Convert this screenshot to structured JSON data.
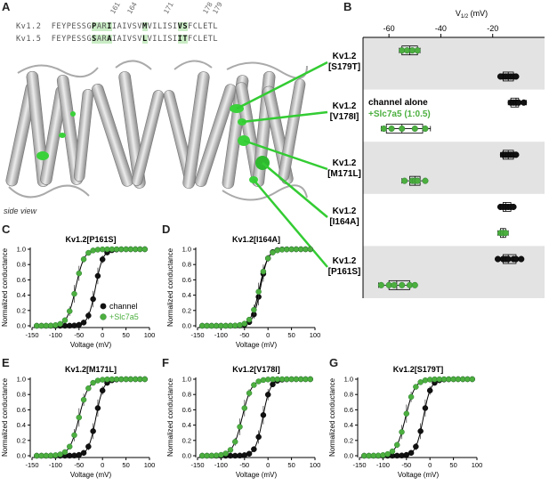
{
  "panels": {
    "A": "A",
    "B": "B",
    "C": "C",
    "D": "D",
    "E": "E",
    "F": "F",
    "G": "G"
  },
  "sequence": {
    "kv12_label": "Kv1.2",
    "kv15_label": "Kv1.5",
    "kv12_parts": [
      "FEYPESSG",
      "P",
      "A",
      "R",
      "I",
      "IAIVSV",
      "M",
      "VILISI",
      "V",
      "S",
      "FCLETL"
    ],
    "kv15_parts": [
      "FEYPESSG",
      "S",
      "A",
      "R",
      "A",
      "IAIVSV",
      "L",
      "VILISI",
      "I",
      "T",
      "FCLETL"
    ],
    "positions": [
      "161",
      "164",
      "171",
      "178",
      "179"
    ]
  },
  "structure": {
    "side_view_label": "side view",
    "mutant_labels": [
      {
        "name": "Kv1.2",
        "mut": "[S179T]"
      },
      {
        "name": "Kv1.2",
        "mut": "[V178I]"
      },
      {
        "name": "Kv1.2",
        "mut": "[M171L]"
      },
      {
        "name": "Kv1.2",
        "mut": "[I164A]"
      },
      {
        "name": "Kv1.2",
        "mut": "[P161S]"
      }
    ],
    "legend_channel": "channel alone",
    "legend_slc": "+Slc7a5 (1:0.5)"
  },
  "colors": {
    "channel": "#111111",
    "slc": "#4caf3f",
    "slc_edge": "#2e7d32",
    "band": "#e3e3e3",
    "link": "#33cc33",
    "highlight": "#c9ecc5"
  },
  "chart_data": [
    {
      "id": "B",
      "type": "box",
      "title": "V1/2 (mV)",
      "title_main": "V",
      "title_sub": "1/2",
      "title_unit": " (mV)",
      "x_ticks": [
        -60,
        -40,
        -20
      ],
      "xlim": [
        -70,
        0
      ],
      "rows": [
        {
          "label": "S179T",
          "band": true,
          "group": "slc",
          "median": -52,
          "q1": -55,
          "q3": -49,
          "min": -56,
          "max": -48,
          "points": [
            -55,
            -53,
            -51,
            -49
          ]
        },
        {
          "label": "S179T",
          "band": true,
          "group": "channel",
          "median": -14,
          "q1": -16,
          "q3": -12,
          "min": -17,
          "max": -11,
          "points": [
            -16,
            -15,
            -14,
            -13,
            -12,
            -11,
            -17
          ]
        },
        {
          "label": "V178I",
          "band": false,
          "group": "channel",
          "median": -11,
          "q1": -13,
          "q3": -10,
          "min": -14,
          "max": -7,
          "points": [
            -13,
            -12,
            -11,
            -10,
            -8
          ]
        },
        {
          "label": "V178I",
          "band": false,
          "group": "slc",
          "median": -55,
          "q1": -61,
          "q3": -47,
          "min": -63,
          "max": -44,
          "points": [
            -62,
            -59,
            -55,
            -50,
            -46
          ]
        },
        {
          "label": "M171L",
          "band": true,
          "group": "channel",
          "median": -14,
          "q1": -16,
          "q3": -12,
          "min": -17,
          "max": -11,
          "points": [
            -16,
            -15,
            -14,
            -13,
            -12,
            -11
          ]
        },
        {
          "label": "M171L",
          "band": true,
          "group": "slc",
          "median": -50,
          "q1": -52,
          "q3": -48,
          "min": -55,
          "max": -46,
          "points": [
            -54,
            -51,
            -50,
            -49,
            -46
          ]
        },
        {
          "label": "I164A",
          "band": false,
          "group": "channel",
          "median": -15,
          "q1": -16,
          "q3": -13,
          "min": -17,
          "max": -12,
          "points": [
            -17,
            -16,
            -15,
            -14,
            -13,
            -12
          ]
        },
        {
          "label": "I164A",
          "band": false,
          "group": "slc",
          "median": -16,
          "q1": -17,
          "q3": -15,
          "min": -18,
          "max": -14,
          "points": [
            -17,
            -16,
            -15
          ]
        },
        {
          "label": "P161S",
          "band": true,
          "group": "channel",
          "median": -14,
          "q1": -16,
          "q3": -11,
          "min": -18,
          "max": -9,
          "points": [
            -18,
            -16,
            -15,
            -14,
            -12,
            -11,
            -9
          ]
        },
        {
          "label": "P161S",
          "band": true,
          "group": "slc",
          "median": -57,
          "q1": -60,
          "q3": -52,
          "min": -64,
          "max": -50,
          "points": [
            -63,
            -60,
            -58,
            -55,
            -52,
            -50
          ]
        }
      ]
    },
    {
      "id": "C",
      "type": "line",
      "title": "Kv1.2[P161S]",
      "xlabel": "Voltage (mV)",
      "ylabel": "Normalized conductance",
      "xlim": [
        -150,
        100
      ],
      "ylim": [
        0,
        1.0
      ],
      "x_ticks": [
        -150,
        -100,
        -50,
        0,
        50,
        100
      ],
      "y_ticks": [
        0.0,
        0.2,
        0.4,
        0.6,
        0.8,
        1.0
      ],
      "legend": [
        "channel",
        "+Slc7a5"
      ],
      "series": [
        {
          "name": "channel",
          "v_half": -15,
          "slope": 8
        },
        {
          "name": "+Slc7a5",
          "v_half": -57,
          "slope": 9
        }
      ]
    },
    {
      "id": "D",
      "type": "line",
      "title": "Kv1.2[I164A]",
      "xlabel": "Voltage (mV)",
      "ylabel": "Normalized conductance",
      "xlim": [
        -150,
        100
      ],
      "ylim": [
        0,
        1.0
      ],
      "x_ticks": [
        -150,
        -100,
        -50,
        0,
        50,
        100
      ],
      "y_ticks": [
        0.0,
        0.2,
        0.4,
        0.6,
        0.8,
        1.0
      ],
      "series": [
        {
          "name": "channel",
          "v_half": -16,
          "slope": 8
        },
        {
          "name": "+Slc7a5",
          "v_half": -18,
          "slope": 9
        }
      ]
    },
    {
      "id": "E",
      "type": "line",
      "title": "Kv1.2[M171L]",
      "xlabel": "Voltage (mV)",
      "ylabel": "Normalized conductance",
      "xlim": [
        -150,
        100
      ],
      "ylim": [
        0,
        1.0
      ],
      "x_ticks": [
        -150,
        -100,
        -50,
        0,
        50,
        100
      ],
      "y_ticks": [
        0.0,
        0.2,
        0.4,
        0.6,
        0.8,
        1.0
      ],
      "series": [
        {
          "name": "channel",
          "v_half": -14,
          "slope": 8
        },
        {
          "name": "+Slc7a5",
          "v_half": -50,
          "slope": 10
        }
      ]
    },
    {
      "id": "F",
      "type": "line",
      "title": "Kv1.2[V178I]",
      "xlabel": "Voltage (mV)",
      "ylabel": "Normalized conductance",
      "xlim": [
        -150,
        100
      ],
      "ylim": [
        0,
        1.0
      ],
      "x_ticks": [
        -150,
        -100,
        -50,
        0,
        50,
        100
      ],
      "y_ticks": [
        0.0,
        0.2,
        0.4,
        0.6,
        0.8,
        1.0
      ],
      "series": [
        {
          "name": "channel",
          "v_half": -11,
          "slope": 8
        },
        {
          "name": "+Slc7a5",
          "v_half": -55,
          "slope": 10
        }
      ]
    },
    {
      "id": "G",
      "type": "line",
      "title": "Kv1.2[S179T]",
      "xlabel": "Voltage (mV)",
      "ylabel": "Normalized conductance",
      "xlim": [
        -150,
        100
      ],
      "ylim": [
        0,
        1.0
      ],
      "x_ticks": [
        -150,
        -100,
        -50,
        0,
        50,
        100
      ],
      "y_ticks": [
        0.0,
        0.2,
        0.4,
        0.6,
        0.8,
        1.0
      ],
      "series": [
        {
          "name": "channel",
          "v_half": -14,
          "slope": 8
        },
        {
          "name": "+Slc7a5",
          "v_half": -52,
          "slope": 10
        }
      ]
    }
  ]
}
